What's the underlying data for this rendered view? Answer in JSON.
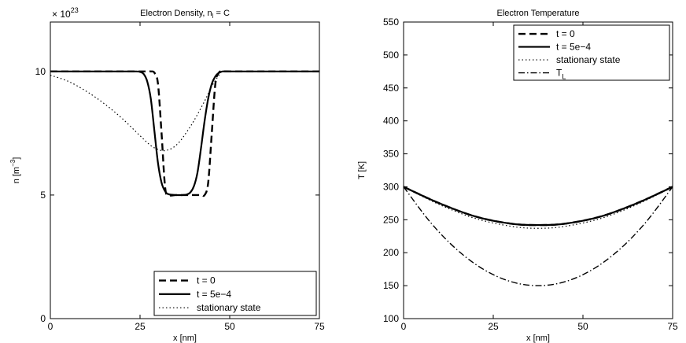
{
  "chart_data": [
    {
      "type": "line",
      "title": "Electron Density, n",
      "title_subscript": "l",
      "title_suffix": " = C",
      "xlabel": "x [nm]",
      "ylabel": "n [m",
      "ylabel_sup": "−3",
      "ylabel_close": "]",
      "exponent_label": "× 10",
      "exponent_power": "23",
      "xlim": [
        0,
        75
      ],
      "ylim": [
        0,
        12
      ],
      "xticks": [
        0,
        25,
        50,
        75
      ],
      "xtick_labels": [
        "0",
        "25",
        "50",
        "75"
      ],
      "yticks": [
        0,
        5,
        10
      ],
      "ytick_labels": [
        "0",
        "5",
        "10"
      ],
      "legend_position": "bottom-right",
      "series": [
        {
          "name": "t = 0",
          "style": "dashed",
          "x": [
            0,
            20,
            24,
            27,
            28,
            29,
            30,
            31,
            32,
            33,
            35,
            38,
            40,
            42,
            43,
            44,
            45,
            46,
            47,
            48,
            50,
            55,
            60,
            65,
            70,
            75
          ],
          "values": [
            10,
            10,
            10,
            10,
            10,
            9.95,
            9.5,
            7.5,
            5.3,
            5.0,
            5.0,
            5.0,
            5.0,
            5.0,
            5.0,
            5.5,
            7.5,
            9.5,
            9.95,
            10,
            10,
            10,
            10,
            10,
            10,
            10
          ]
        },
        {
          "name": "t = 5e−4",
          "style": "solid",
          "x": [
            0,
            20,
            24,
            25,
            26,
            27,
            28,
            29,
            30,
            31,
            32,
            33,
            35,
            37,
            38,
            39,
            40,
            41,
            42,
            43,
            44,
            45,
            46,
            47,
            48,
            50,
            55,
            60,
            65,
            70,
            75
          ],
          "values": [
            10,
            10,
            10,
            9.98,
            9.9,
            9.6,
            8.9,
            7.6,
            6.3,
            5.5,
            5.15,
            5.03,
            5.0,
            5.0,
            5.02,
            5.1,
            5.35,
            5.9,
            6.9,
            8.0,
            8.9,
            9.5,
            9.8,
            9.95,
            10,
            10,
            10,
            10,
            10,
            10,
            10
          ]
        },
        {
          "name": "stationary state",
          "style": "dotted",
          "x": [
            0,
            5,
            10,
            15,
            20,
            25,
            28,
            30,
            31,
            32,
            34,
            36,
            38,
            40,
            43,
            45,
            47,
            48,
            50,
            55,
            60,
            65,
            70,
            75
          ],
          "values": [
            9.85,
            9.6,
            9.2,
            8.7,
            8.1,
            7.4,
            7.0,
            6.85,
            6.8,
            6.8,
            6.9,
            7.15,
            7.55,
            8.0,
            8.8,
            9.4,
            9.85,
            10,
            10,
            10,
            10,
            10,
            10,
            10
          ]
        }
      ]
    },
    {
      "type": "line",
      "title": "Electron Temperature",
      "xlabel": "x [nm]",
      "ylabel": "T [K]",
      "xlim": [
        0,
        75
      ],
      "ylim": [
        100,
        550
      ],
      "xticks": [
        0,
        25,
        50,
        75
      ],
      "xtick_labels": [
        "0",
        "25",
        "50",
        "75"
      ],
      "yticks": [
        100,
        150,
        200,
        250,
        300,
        350,
        400,
        450,
        500,
        550
      ],
      "ytick_labels": [
        "100",
        "150",
        "200",
        "250",
        "300",
        "350",
        "400",
        "450",
        "500",
        "550"
      ],
      "legend_position": "top-right",
      "series": [
        {
          "name": "t = 0",
          "style": "dashed",
          "x": [
            0,
            10,
            20,
            30,
            37.5,
            45,
            55,
            65,
            75
          ],
          "values": [
            300,
            275,
            255,
            244,
            242,
            244,
            255,
            275,
            300
          ]
        },
        {
          "name": "t = 5e−4",
          "style": "solid",
          "x": [
            0,
            10,
            20,
            30,
            37.5,
            45,
            55,
            65,
            75
          ],
          "values": [
            300,
            275,
            255,
            244,
            242,
            244,
            255,
            275,
            300
          ]
        },
        {
          "name": "stationary state",
          "style": "dotted",
          "x": [
            0,
            10,
            20,
            30,
            37.5,
            45,
            55,
            65,
            75
          ],
          "values": [
            300,
            273,
            252,
            240,
            237,
            240,
            252,
            273,
            300
          ]
        },
        {
          "name": "T",
          "name_subscript": "L",
          "style": "dashdot",
          "x": [
            0,
            7.5,
            15,
            22.5,
            30,
            37.5,
            45,
            52.5,
            60,
            67.5,
            75
          ],
          "values": [
            300,
            246,
            204,
            174,
            156,
            150,
            156,
            174,
            204,
            246,
            300
          ]
        }
      ]
    }
  ]
}
